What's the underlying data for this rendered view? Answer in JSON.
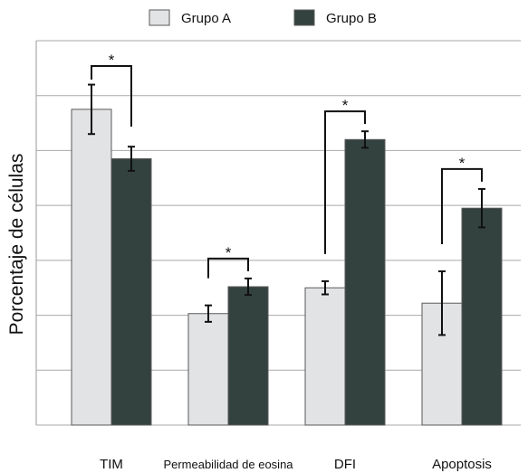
{
  "chart_data": {
    "type": "bar",
    "title": "",
    "xlabel": "",
    "ylabel": "Porcentaje de células",
    "ylim": [
      0,
      7
    ],
    "y_gridlines": [
      0,
      1,
      2,
      3,
      4,
      5,
      6,
      7
    ],
    "grid": true,
    "legend_position": "top-center",
    "categories": [
      "TIM",
      "Permeabilidad de eosina",
      "DFI",
      "Apoptosis"
    ],
    "series": [
      {
        "name": "Grupo A",
        "color": "#e2e3e5",
        "values": [
          5.75,
          2.03,
          2.5,
          2.22
        ],
        "error": [
          0.45,
          0.15,
          0.12,
          0.58
        ]
      },
      {
        "name": "Grupo B",
        "color": "#33423f",
        "values": [
          4.85,
          2.52,
          5.2,
          3.95
        ],
        "error": [
          0.22,
          0.15,
          0.15,
          0.35
        ]
      }
    ],
    "significance": [
      {
        "category": "TIM",
        "marker": "*"
      },
      {
        "category": "Permeabilidad de eosina",
        "marker": "*"
      },
      {
        "category": "DFI",
        "marker": "*"
      },
      {
        "category": "Apoptosis",
        "marker": "*"
      }
    ]
  }
}
